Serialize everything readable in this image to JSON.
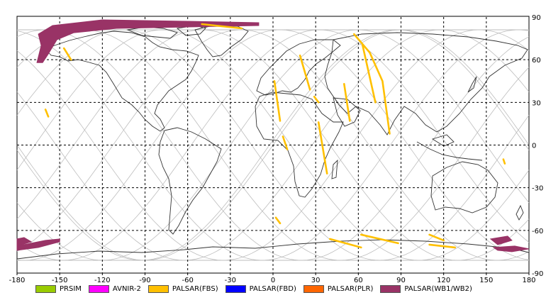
{
  "map": {
    "x_ticks": [
      "-180",
      "-150",
      "-120",
      "-90",
      "-60",
      "-30",
      "0",
      "30",
      "60",
      "90",
      "120",
      "150",
      "180"
    ],
    "y_ticks": [
      "90",
      "60",
      "30",
      "0",
      "-30",
      "-60",
      "-90"
    ],
    "colors": {
      "background": "#ffffff",
      "coastline": "#333333",
      "orbit": "#bdbdbd",
      "grid": "#000000",
      "FBS": "#ffc000",
      "WB": "#993366"
    }
  },
  "legend": [
    {
      "label": "PRSIM",
      "color": "#99cc00"
    },
    {
      "label": "AVNIR-2",
      "color": "#ff00ff"
    },
    {
      "label": "PALSAR(FBS)",
      "color": "#ffc000"
    },
    {
      "label": "PALSAR(FBD)",
      "color": "#0000ff"
    },
    {
      "label": "PALSAR(PLR)",
      "color": "#ff6600"
    },
    {
      "label": "PALSAR(WB1/WB2)",
      "color": "#993366"
    }
  ],
  "wb_swaths": [
    [
      [
        -165,
        78
      ],
      [
        -155,
        84
      ],
      [
        -120,
        88
      ],
      [
        -60,
        87
      ],
      [
        -10,
        86
      ],
      [
        -10,
        84
      ],
      [
        -60,
        83
      ],
      [
        -110,
        82
      ],
      [
        -140,
        79
      ],
      [
        -152,
        74
      ],
      [
        -158,
        64
      ],
      [
        -162,
        58
      ],
      [
        -166,
        58
      ],
      [
        -163,
        70
      ]
    ],
    [
      [
        -180,
        -66
      ],
      [
        -175,
        -65
      ],
      [
        -170,
        -68
      ],
      [
        -180,
        -71
      ]
    ],
    [
      [
        -180,
        -71
      ],
      [
        -160,
        -67
      ],
      [
        -150,
        -66
      ],
      [
        -150,
        -68
      ],
      [
        -165,
        -72
      ],
      [
        -180,
        -74
      ]
    ],
    [
      [
        153,
        -66
      ],
      [
        165,
        -64
      ],
      [
        168,
        -67
      ],
      [
        158,
        -70
      ]
    ],
    [
      [
        155,
        -72
      ],
      [
        170,
        -71
      ],
      [
        180,
        -73
      ],
      [
        168,
        -75
      ],
      [
        158,
        -74
      ]
    ]
  ],
  "fbs_lines": [
    [
      [
        -147,
        68
      ],
      [
        -142,
        60
      ]
    ],
    [
      [
        -160,
        25
      ],
      [
        -158,
        20
      ]
    ],
    [
      [
        -50,
        85
      ],
      [
        -22,
        82
      ]
    ],
    [
      [
        1,
        45
      ],
      [
        5,
        17
      ]
    ],
    [
      [
        7,
        6
      ],
      [
        10,
        -3
      ]
    ],
    [
      [
        19,
        63
      ],
      [
        26,
        39
      ]
    ],
    [
      [
        29,
        34
      ],
      [
        32,
        30
      ]
    ],
    [
      [
        50,
        43
      ],
      [
        54,
        17
      ]
    ],
    [
      [
        57,
        78
      ],
      [
        68,
        65
      ],
      [
        77,
        45
      ],
      [
        82,
        8
      ]
    ],
    [
      [
        63,
        70
      ],
      [
        72,
        30
      ]
    ],
    [
      [
        32,
        16
      ],
      [
        38,
        -20
      ]
    ],
    [
      [
        2,
        -51
      ],
      [
        5,
        -55
      ]
    ],
    [
      [
        40,
        -66
      ],
      [
        62,
        -72
      ]
    ],
    [
      [
        62,
        -63
      ],
      [
        88,
        -69
      ]
    ],
    [
      [
        110,
        -63
      ],
      [
        120,
        -67
      ]
    ],
    [
      [
        110,
        -70
      ],
      [
        128,
        -72
      ]
    ],
    [
      [
        162,
        -10
      ],
      [
        163,
        -13
      ]
    ]
  ]
}
